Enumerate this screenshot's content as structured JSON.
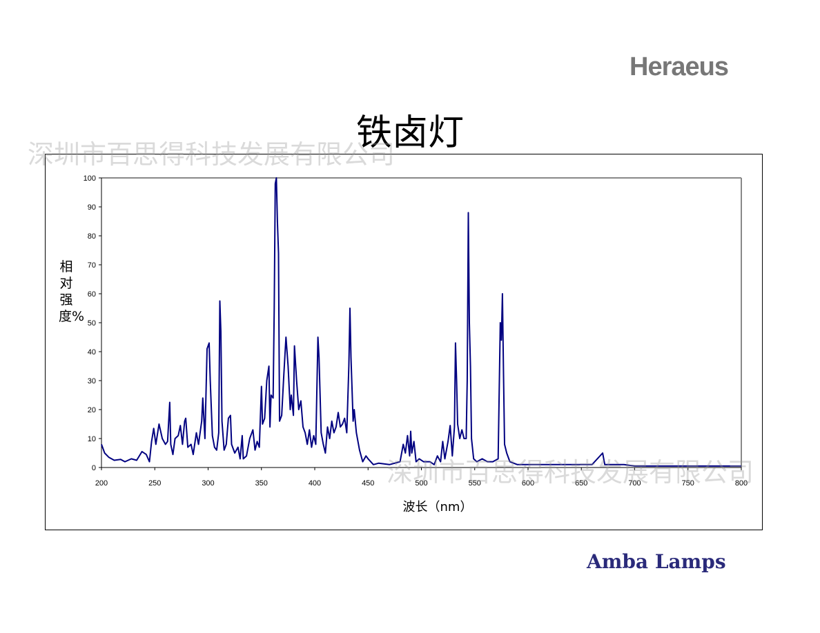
{
  "brand": "Heraeus",
  "footer_brand": "Amba Lamps",
  "watermark": "深圳市百思得科技发展有限公司",
  "chart_data": {
    "type": "line",
    "title": "铁卤灯",
    "ylabel": "相对强度%",
    "xlabel": "波长（nm）",
    "color": "#000080",
    "xlim": [
      200,
      800
    ],
    "xticks": [
      200,
      250,
      300,
      350,
      400,
      450,
      500,
      550,
      600,
      650,
      700,
      750,
      800
    ],
    "ylim": [
      0,
      100
    ],
    "yticks": [
      0,
      10,
      20,
      30,
      40,
      50,
      60,
      70,
      80,
      90,
      100
    ],
    "x": [
      200,
      203,
      207,
      212,
      218,
      222,
      228,
      233,
      238,
      242,
      245,
      247,
      249,
      251,
      254,
      257,
      260,
      262,
      264,
      265,
      267,
      269,
      272,
      274,
      276,
      278,
      279,
      281,
      284,
      286,
      289,
      291,
      294,
      295,
      297,
      299,
      301,
      302,
      304,
      306,
      308,
      310,
      311,
      312,
      313,
      315,
      317,
      319,
      321,
      322,
      325,
      328,
      330,
      332,
      333,
      336,
      339,
      342,
      344,
      346,
      348,
      350,
      351,
      353,
      355,
      357,
      358,
      359,
      361,
      362,
      363,
      364,
      365,
      366,
      367,
      369,
      371,
      373,
      375,
      377,
      378,
      380,
      381,
      383,
      385,
      387,
      389,
      391,
      393,
      395,
      397,
      399,
      401,
      403,
      404,
      406,
      408,
      410,
      412,
      414,
      416,
      418,
      420,
      422,
      424,
      426,
      428,
      430,
      432,
      433,
      434,
      436,
      437,
      439,
      442,
      445,
      448,
      450,
      455,
      460,
      470,
      480,
      483,
      485,
      487,
      489,
      490,
      491,
      493,
      495,
      498,
      502,
      508,
      512,
      515,
      518,
      520,
      522,
      525,
      527,
      529,
      531,
      532,
      533,
      534,
      536,
      538,
      540,
      542,
      543,
      544,
      545,
      546,
      547,
      549,
      552,
      557,
      562,
      567,
      572,
      574,
      575,
      576,
      577,
      578,
      580,
      583,
      590,
      600,
      620,
      640,
      660,
      670,
      672,
      690,
      700,
      750,
      800
    ],
    "values": [
      8,
      5,
      3.5,
      2.5,
      2.8,
      2,
      3,
      2.5,
      5.5,
      4.5,
      2,
      9,
      13.5,
      8,
      15,
      10,
      8,
      9,
      22.5,
      8,
      4.5,
      10,
      11,
      14.5,
      8,
      16,
      17,
      7,
      8,
      4.5,
      12,
      8,
      16,
      24,
      10,
      41,
      43,
      30,
      11,
      7,
      6,
      12,
      57.5,
      47,
      16,
      6,
      8,
      17,
      18,
      8,
      5,
      7,
      3,
      11,
      3,
      4,
      10,
      13,
      6,
      9,
      7,
      28,
      15,
      17,
      30,
      35,
      14,
      25,
      24,
      55,
      98,
      100,
      85,
      74,
      16,
      18,
      32,
      45,
      35,
      20,
      25,
      18,
      42,
      30,
      20,
      23,
      14,
      12,
      8,
      13,
      7,
      11,
      8,
      45,
      38,
      12,
      8,
      5,
      14,
      10,
      16,
      12,
      14,
      19,
      14,
      15,
      17,
      12,
      35,
      55,
      38,
      16,
      20,
      12,
      6,
      2,
      4,
      3,
      1,
      1.5,
      1,
      2,
      8,
      5,
      11,
      4,
      12.5,
      5,
      9,
      2,
      3,
      2,
      2,
      1,
      4,
      2,
      9,
      3,
      9,
      14.5,
      4,
      14,
      43,
      30,
      15,
      10,
      13,
      10,
      10,
      30,
      88,
      50,
      35,
      10,
      3,
      2,
      3,
      2,
      2,
      3,
      50,
      44,
      60,
      32,
      8,
      5,
      2,
      1,
      1,
      1,
      1,
      1,
      5,
      1,
      1,
      0.5,
      0.5,
      0.5
    ]
  }
}
